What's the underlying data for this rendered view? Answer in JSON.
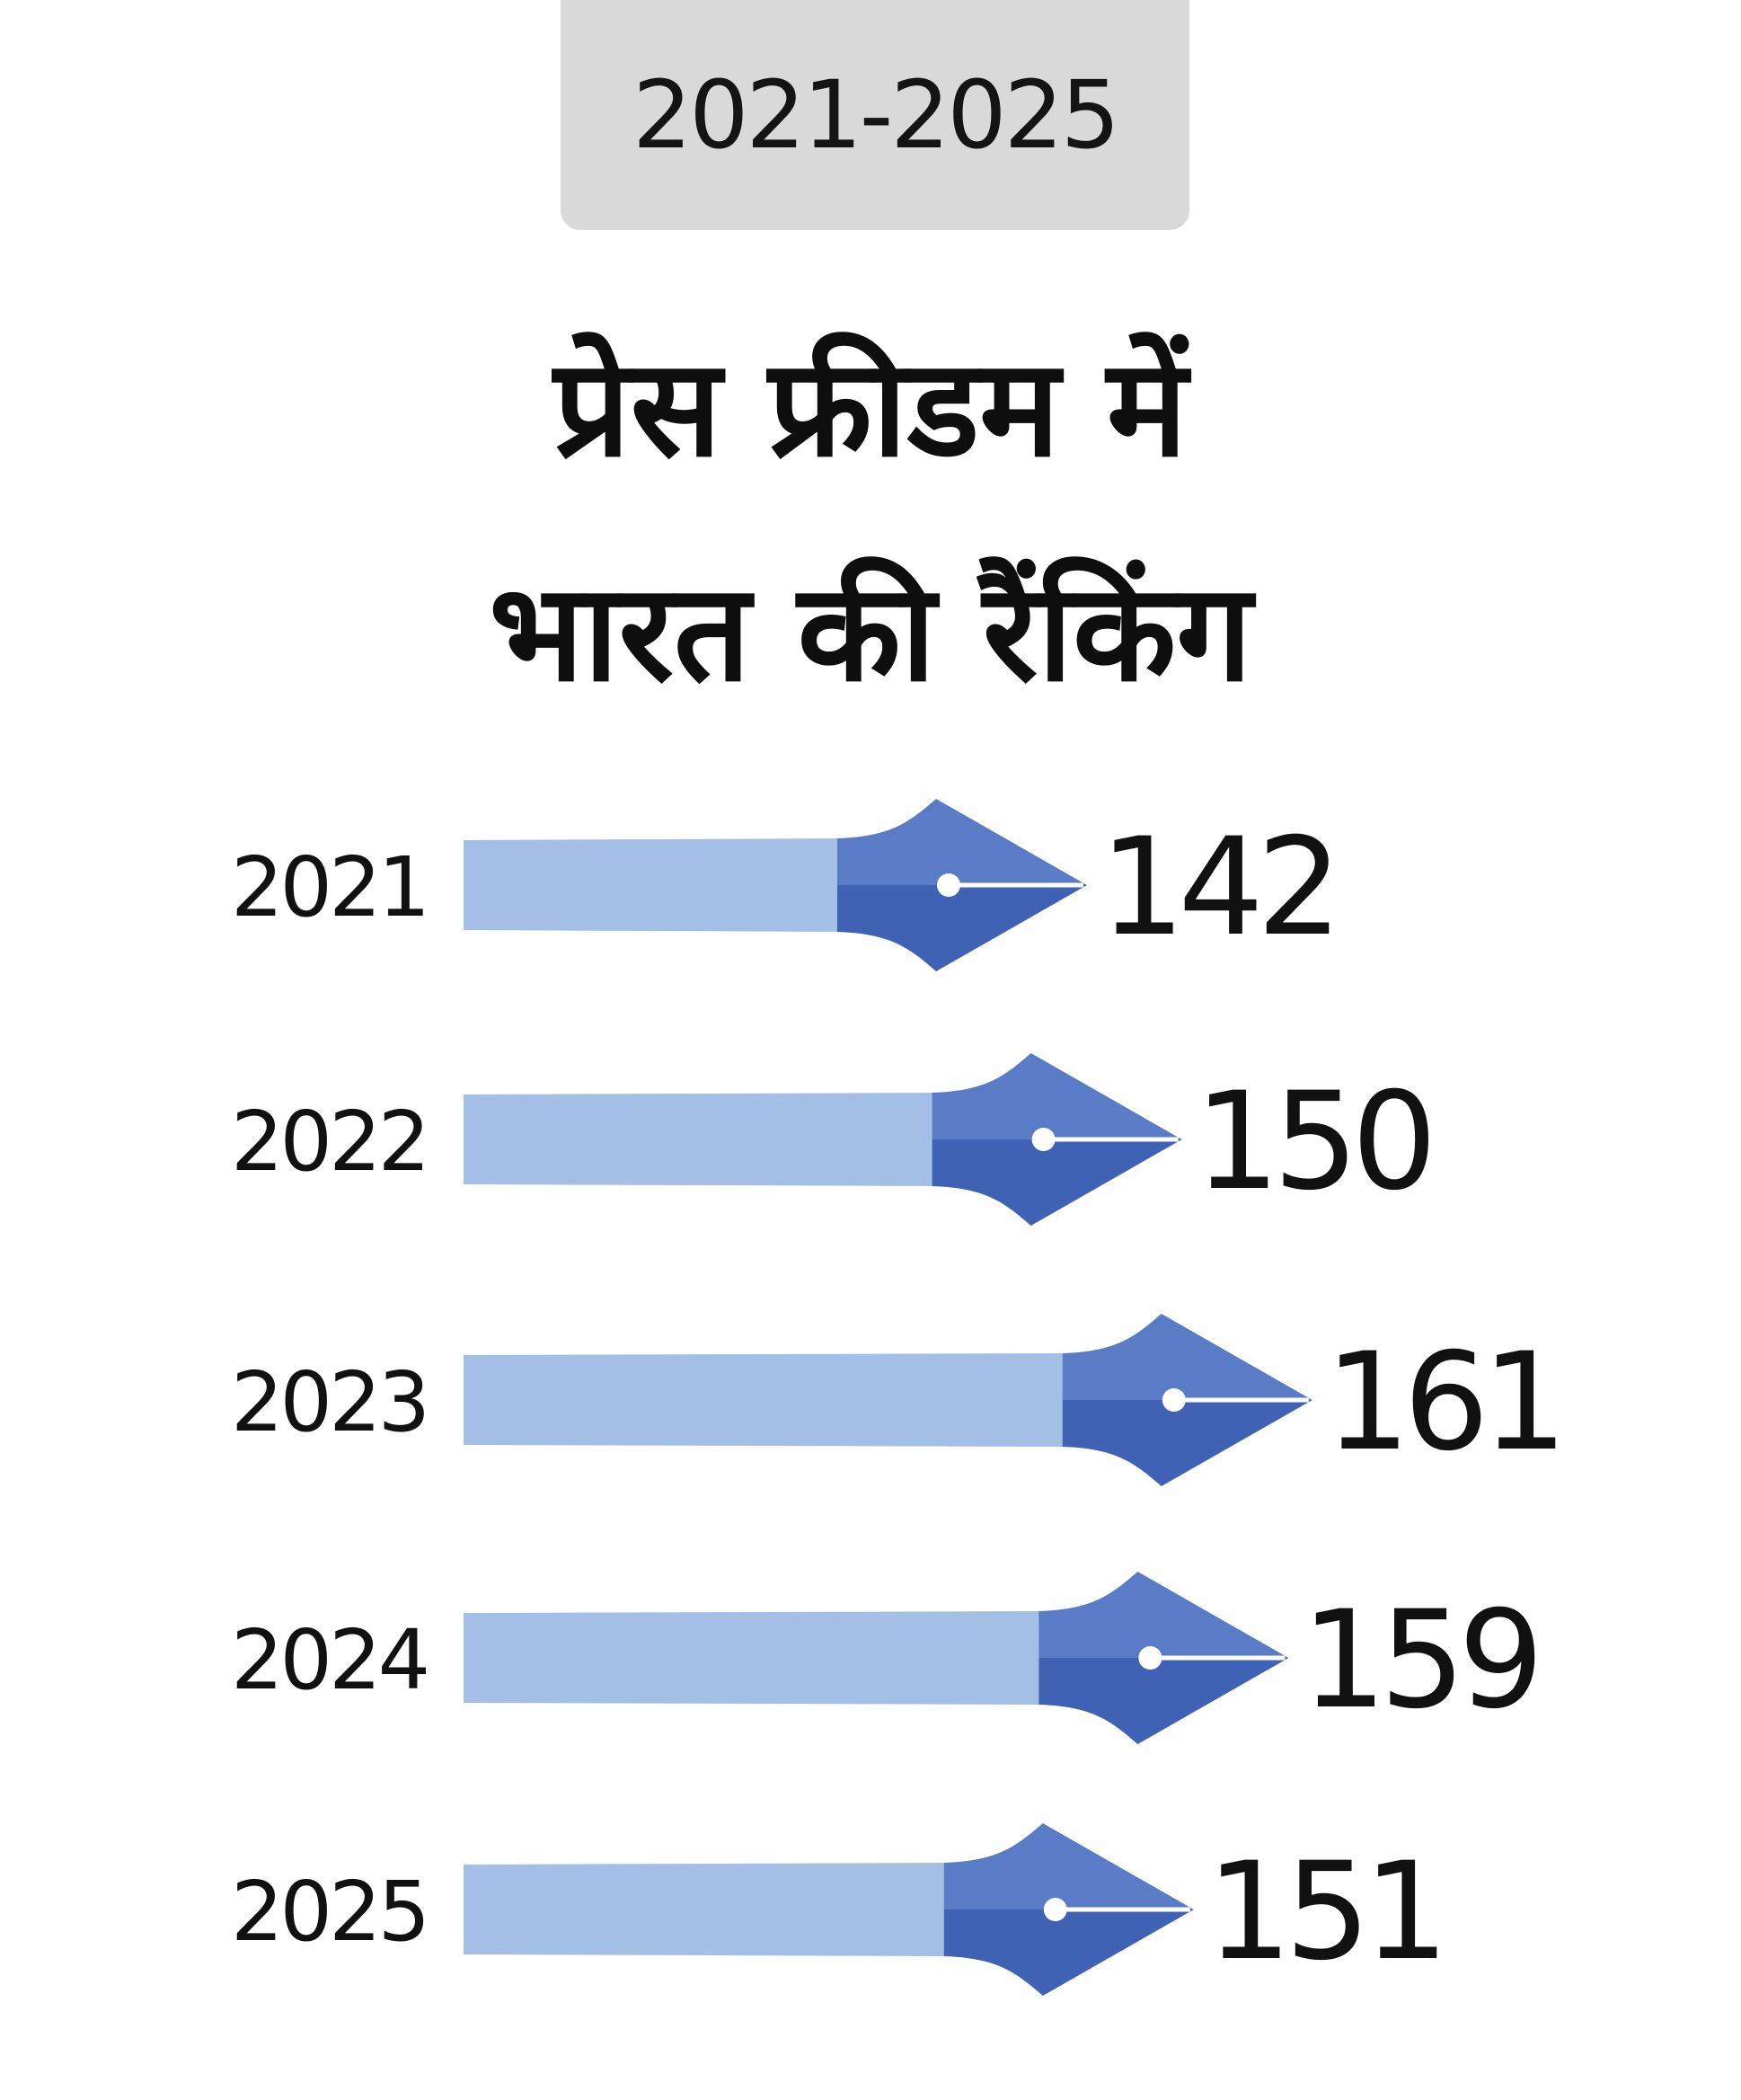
{
  "header": {
    "period": "2021-2025",
    "title_line1": "प्रेस फ्रीडम में",
    "title_line2": "भारत की रैंकिंग"
  },
  "colors": {
    "shaft": "#a4bfe6",
    "nib_dark": "#3f62b4",
    "nib_light": "#5a7cc6",
    "badge": "#d9d9d9"
  },
  "chart_data": {
    "type": "bar",
    "categories": [
      "2021",
      "2022",
      "2023",
      "2024",
      "2025"
    ],
    "values": [
      142,
      150,
      161,
      159,
      151
    ]
  }
}
